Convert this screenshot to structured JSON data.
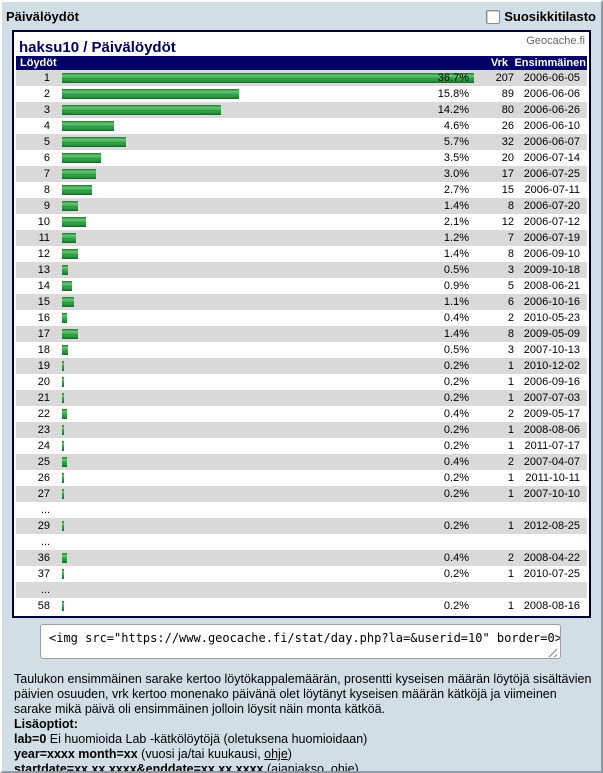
{
  "page": {
    "title": "Päivälöydöt",
    "favorite_label": "Suosikkitilasto"
  },
  "panel": {
    "heading": "haksu10 / Päivälöydöt",
    "brand": "Geocache.fi"
  },
  "table": {
    "headers": {
      "finds": "Löydöt",
      "days": "Vrk",
      "first": "Ensimmäinen"
    },
    "max_pct": 36.7,
    "ellipsis_label": "...",
    "rows": [
      {
        "finds": "1",
        "pct": 36.7,
        "pct_label": "36.7%",
        "vrk": "207",
        "first": "2006-06-05"
      },
      {
        "finds": "2",
        "pct": 15.8,
        "pct_label": "15.8%",
        "vrk": "89",
        "first": "2006-06-06"
      },
      {
        "finds": "3",
        "pct": 14.2,
        "pct_label": "14.2%",
        "vrk": "80",
        "first": "2006-06-26"
      },
      {
        "finds": "4",
        "pct": 4.6,
        "pct_label": "4.6%",
        "vrk": "26",
        "first": "2006-06-10"
      },
      {
        "finds": "5",
        "pct": 5.7,
        "pct_label": "5.7%",
        "vrk": "32",
        "first": "2006-06-07"
      },
      {
        "finds": "6",
        "pct": 3.5,
        "pct_label": "3.5%",
        "vrk": "20",
        "first": "2006-07-14"
      },
      {
        "finds": "7",
        "pct": 3.0,
        "pct_label": "3.0%",
        "vrk": "17",
        "first": "2006-07-25"
      },
      {
        "finds": "8",
        "pct": 2.7,
        "pct_label": "2.7%",
        "vrk": "15",
        "first": "2006-07-11"
      },
      {
        "finds": "9",
        "pct": 1.4,
        "pct_label": "1.4%",
        "vrk": "8",
        "first": "2006-07-20"
      },
      {
        "finds": "10",
        "pct": 2.1,
        "pct_label": "2.1%",
        "vrk": "12",
        "first": "2006-07-12"
      },
      {
        "finds": "11",
        "pct": 1.2,
        "pct_label": "1.2%",
        "vrk": "7",
        "first": "2006-07-19"
      },
      {
        "finds": "12",
        "pct": 1.4,
        "pct_label": "1.4%",
        "vrk": "8",
        "first": "2006-09-10"
      },
      {
        "finds": "13",
        "pct": 0.5,
        "pct_label": "0.5%",
        "vrk": "3",
        "first": "2009-10-18"
      },
      {
        "finds": "14",
        "pct": 0.9,
        "pct_label": "0.9%",
        "vrk": "5",
        "first": "2008-06-21"
      },
      {
        "finds": "15",
        "pct": 1.1,
        "pct_label": "1.1%",
        "vrk": "6",
        "first": "2006-10-16"
      },
      {
        "finds": "16",
        "pct": 0.4,
        "pct_label": "0.4%",
        "vrk": "2",
        "first": "2010-05-23"
      },
      {
        "finds": "17",
        "pct": 1.4,
        "pct_label": "1.4%",
        "vrk": "8",
        "first": "2009-05-09"
      },
      {
        "finds": "18",
        "pct": 0.5,
        "pct_label": "0.5%",
        "vrk": "3",
        "first": "2007-10-13"
      },
      {
        "finds": "19",
        "pct": 0.2,
        "pct_label": "0.2%",
        "vrk": "1",
        "first": "2010-12-02"
      },
      {
        "finds": "20",
        "pct": 0.2,
        "pct_label": "0.2%",
        "vrk": "1",
        "first": "2006-09-16"
      },
      {
        "finds": "21",
        "pct": 0.2,
        "pct_label": "0.2%",
        "vrk": "1",
        "first": "2007-07-03"
      },
      {
        "finds": "22",
        "pct": 0.4,
        "pct_label": "0.4%",
        "vrk": "2",
        "first": "2009-05-17"
      },
      {
        "finds": "23",
        "pct": 0.2,
        "pct_label": "0.2%",
        "vrk": "1",
        "first": "2008-08-06"
      },
      {
        "finds": "24",
        "pct": 0.2,
        "pct_label": "0.2%",
        "vrk": "1",
        "first": "2011-07-17"
      },
      {
        "finds": "25",
        "pct": 0.4,
        "pct_label": "0.4%",
        "vrk": "2",
        "first": "2007-04-07"
      },
      {
        "finds": "26",
        "pct": 0.2,
        "pct_label": "0.2%",
        "vrk": "1",
        "first": "2011-10-11"
      },
      {
        "finds": "27",
        "pct": 0.2,
        "pct_label": "0.2%",
        "vrk": "1",
        "first": "2007-10-10"
      },
      {
        "ellipsis": true
      },
      {
        "finds": "29",
        "pct": 0.2,
        "pct_label": "0.2%",
        "vrk": "1",
        "first": "2012-08-25"
      },
      {
        "ellipsis": true
      },
      {
        "finds": "36",
        "pct": 0.4,
        "pct_label": "0.4%",
        "vrk": "2",
        "first": "2008-04-22"
      },
      {
        "finds": "37",
        "pct": 0.2,
        "pct_label": "0.2%",
        "vrk": "1",
        "first": "2010-07-25"
      },
      {
        "ellipsis": true
      },
      {
        "finds": "58",
        "pct": 0.2,
        "pct_label": "0.2%",
        "vrk": "1",
        "first": "2008-08-16"
      }
    ]
  },
  "embed": {
    "code": "<img src=\"https://www.geocache.fi/stat/day.php?la=&userid=10\" border=0>"
  },
  "footer": {
    "description": "Taulukon ensimmäinen sarake kertoo löytökappalemäärän, prosentti kyseisen määrän löytöjä sisältävien päivien osuuden, vrk kertoo monenako päivänä olet löytänyt kyseisen määrän kätköjä ja viimeinen sarake mikä päivä oli ensimmäinen jolloin löysit näin monta kätköä.",
    "options_title": "Lisäoptiot:",
    "options": [
      {
        "code": "lab=0",
        "text": " Ei huomioida Lab -kätkölöytöjä (oletuksena huomioidaan)"
      },
      {
        "code": "year=xxxx month=xx",
        "text": " (vuosi ja/tai kuukausi, ",
        "link": "ohje",
        "after": ")"
      },
      {
        "code": "startdate=xx.xx.xxxx&enddate=xx.xx.xxxx",
        "text": " (ajanjakso, ",
        "link": "ohje",
        "after": ")"
      }
    ]
  },
  "colors": {
    "page_bg": "#d2dee6",
    "panel_border": "#000033",
    "header_navy": "#000066",
    "row_alt": "#d9d9d9",
    "bar_green": "#2f9e44",
    "brand_gray": "#666666"
  }
}
